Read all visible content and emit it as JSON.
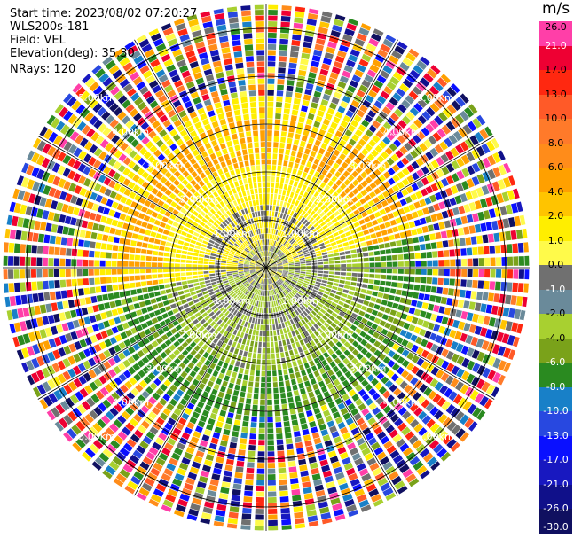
{
  "info": {
    "start_time": "Start time: 2023/08/02 07:20:27",
    "instrument": "WLS200s-181",
    "field": "Field: VEL",
    "elevation": "Elevation(deg): 35.30",
    "nrays": "NRays: 120"
  },
  "colorbar": {
    "unit": "m/s",
    "labels": [
      "26.0",
      "21.0",
      "17.0",
      "13.0",
      "10.0",
      "8.0",
      "6.0",
      "4.0",
      "2.0",
      "1.0",
      "0.0",
      "-1.0",
      "-2.0",
      "-4.0",
      "-6.0",
      "-8.0",
      "-10.0",
      "-13.0",
      "-17.0",
      "-21.0",
      "-26.0",
      "-30.0"
    ],
    "colors": [
      "#ff3fa8",
      "#ee0033",
      "#ff2810",
      "#ff5a28",
      "#ff7a2a",
      "#ff8c1a",
      "#ffa000",
      "#ffc400",
      "#ffee00",
      "#fffa4a",
      "#707070",
      "#6a8a9a",
      "#a8d030",
      "#7aa21a",
      "#2a8a20",
      "#1880c8",
      "#2848e0",
      "#0a10ff",
      "#1818c0",
      "#10108a",
      "#101060"
    ],
    "text_colors": [
      "#000000",
      "#ffffff",
      "#000000",
      "#000000",
      "#000000",
      "#000000",
      "#000000",
      "#000000",
      "#000000",
      "#000000",
      "#000000",
      "#ffffff",
      "#000000",
      "#000000",
      "#ffffff",
      "#ffffff",
      "#ffffff",
      "#ffffff",
      "#ffffff",
      "#ffffff",
      "#ffffff",
      "#ffffff"
    ]
  },
  "range_labels": {
    "r1": "1.00km",
    "r2": "2.00km",
    "r3": "3.00km",
    "r4": "4.00km",
    "r5": "5.00km"
  },
  "chart_data": {
    "type": "heatmap",
    "title": "",
    "projection": "polar PPI",
    "field": "VEL",
    "unit": "m/s",
    "n_rays": 120,
    "elevation_deg": 35.3,
    "range_rings_km": [
      1,
      2,
      3,
      4,
      5
    ],
    "spokes_deg": [
      0,
      30,
      60,
      90,
      120,
      150,
      180,
      210,
      240,
      270,
      300,
      330
    ],
    "max_range_km": 5.5,
    "colorbar_ticks": [
      26,
      21,
      17,
      13,
      10,
      8,
      6,
      4,
      2,
      1,
      0,
      -1,
      -2,
      -4,
      -6,
      -8,
      -10,
      -13,
      -17,
      -21,
      -26,
      -30
    ],
    "approximate_pattern": [
      {
        "range_km": [
          0,
          0.45
        ],
        "value_ms": 0.0,
        "note": "near-zero core"
      },
      {
        "range_km": [
          0.45,
          2.0
        ],
        "azimuth_deg": [
          270,
          90
        ],
        "value_ms": 2.0
      },
      {
        "range_km": [
          0.45,
          2.0
        ],
        "azimuth_deg": [
          90,
          270
        ],
        "value_ms": -2.0
      },
      {
        "range_km": [
          2.0,
          3.2
        ],
        "azimuth_deg": [
          270,
          90
        ],
        "value_ms": 4.0
      },
      {
        "range_km": [
          2.0,
          3.2
        ],
        "azimuth_deg": [
          90,
          270
        ],
        "value_ms": -6.0
      },
      {
        "range_km": [
          3.2,
          5.5
        ],
        "value_ms": null,
        "note": "noisy, mixed colors"
      }
    ]
  }
}
